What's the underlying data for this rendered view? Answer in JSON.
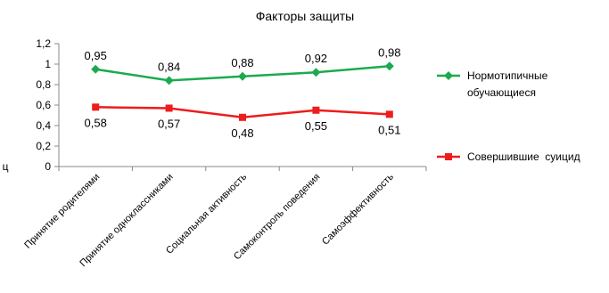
{
  "chart_data": {
    "type": "line",
    "title": "Факторы защиты",
    "ylabel": "ц",
    "xlabel": "",
    "ylim": [
      0,
      1.2
    ],
    "yticks": [
      0,
      0.2,
      0.4,
      0.6,
      0.8,
      1,
      1.2
    ],
    "ytick_labels": [
      "0",
      "0,2",
      "0,4",
      "0,6",
      "0,8",
      "1",
      "1,2"
    ],
    "grid": false,
    "legend_position": "right",
    "categories": [
      "Принятие родителями",
      "Принятие одноклассниками",
      "Социальная активность",
      "Самоконтроль поведения",
      "Самоэффективность"
    ],
    "series": [
      {
        "name_lines": [
          "Нормотипичные",
          "обучающиеся"
        ],
        "color": "#1aab4e",
        "marker": "diamond",
        "values": [
          0.95,
          0.84,
          0.88,
          0.92,
          0.98
        ],
        "labels": [
          "0,95",
          "0,84",
          "0,88",
          "0,92",
          "0,98"
        ],
        "label_position": "above"
      },
      {
        "name_lines": [
          "Совершившие  суицид"
        ],
        "color": "#ee1c1c",
        "marker": "square",
        "values": [
          0.58,
          0.57,
          0.48,
          0.55,
          0.51
        ],
        "labels": [
          "0,58",
          "0,57",
          "0,48",
          "0,55",
          "0,51"
        ],
        "label_position": "below"
      }
    ]
  }
}
